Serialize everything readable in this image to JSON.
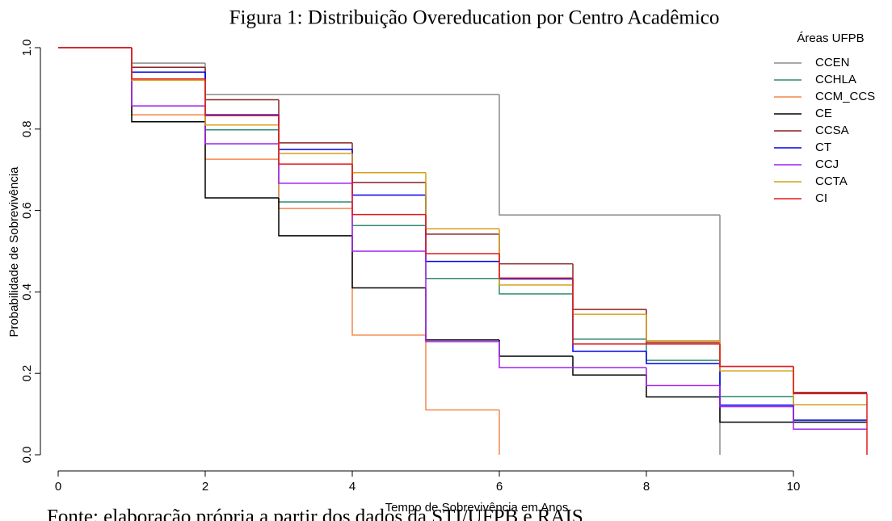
{
  "chart_data": {
    "type": "step",
    "title": "Figura 1: Distribuição Overeducation por Centro Acadêmico",
    "x_label": "Tempo de Sobrevivência em Anos",
    "y_label": "Probabilidade de Sobrevivência",
    "source": "Fonte: elaboração própria a partir dos dados da STI/UFPB e RAIS",
    "legend_title": "Áreas UFPB",
    "legend_position": "top-right",
    "x": [
      0,
      1,
      2,
      3,
      4,
      5,
      6,
      7,
      8,
      9,
      10,
      11
    ],
    "series": [
      {
        "name": "CCEN",
        "color": "#8c8c8c",
        "values": [
          1,
          0.962,
          0.885,
          0.885,
          0.885,
          0.885,
          0.589,
          0.589,
          0.589,
          0,
          null,
          null
        ]
      },
      {
        "name": "CCHLA",
        "color": "#2e8b74",
        "values": [
          1,
          0.94,
          0.798,
          0.621,
          0.563,
          0.433,
          0.395,
          0.284,
          0.232,
          0.143,
          0.08,
          0.08
        ]
      },
      {
        "name": "CCM_CCS",
        "color": "#f4874b",
        "values": [
          1,
          0.835,
          0.726,
          0.605,
          0.294,
          0.11,
          0,
          null,
          null,
          null,
          null,
          null
        ]
      },
      {
        "name": "CE",
        "color": "#000000",
        "values": [
          1,
          0.818,
          0.631,
          0.538,
          0.41,
          0.282,
          0.242,
          0.196,
          0.142,
          0.08,
          0.08,
          0.08
        ]
      },
      {
        "name": "CCSA",
        "color": "#8b2323",
        "values": [
          1,
          0.952,
          0.872,
          0.766,
          0.669,
          0.542,
          0.469,
          0.357,
          0.276,
          0.217,
          0.153,
          0.153
        ]
      },
      {
        "name": "CT",
        "color": "#0000ee",
        "values": [
          1,
          0.94,
          0.835,
          0.75,
          0.638,
          0.475,
          0.432,
          0.254,
          0.224,
          0.122,
          0.085,
          0.085
        ]
      },
      {
        "name": "CCJ",
        "color": "#a020f0",
        "values": [
          1,
          0.857,
          0.764,
          0.667,
          0.5,
          0.278,
          0.214,
          0.214,
          0.17,
          0.118,
          0.063,
          0.063
        ]
      },
      {
        "name": "CCTA",
        "color": "#d4a017",
        "values": [
          1,
          0.92,
          0.81,
          0.74,
          0.693,
          0.555,
          0.417,
          0.345,
          0.28,
          0.206,
          0.123,
          0.123
        ]
      },
      {
        "name": "CI",
        "color": "#e31a1c",
        "values": [
          1,
          0.923,
          0.833,
          0.714,
          0.59,
          0.494,
          0.434,
          0.272,
          0.272,
          0.217,
          0.15,
          0
        ]
      }
    ],
    "xlim": [
      0,
      11
    ],
    "ylim": [
      0,
      1
    ],
    "xticks": [
      0,
      2,
      4,
      6,
      8,
      10
    ],
    "yticks": [
      {
        "value": 0,
        "label": "0.0"
      },
      0.2,
      0.4,
      0.6,
      0.8,
      {
        "value": 1,
        "label": "1.0"
      }
    ]
  }
}
